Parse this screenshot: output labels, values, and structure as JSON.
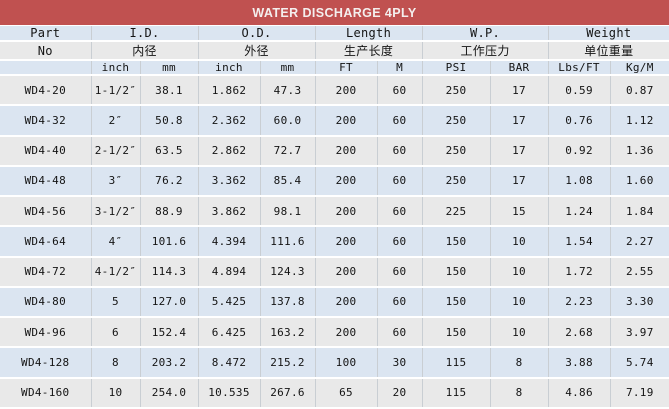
{
  "title": "WATER DISCHARGE 4PLY",
  "theme": {
    "header_bg": "#c05150",
    "title_text": "#f4efee",
    "row_blue": "#dbe5f1",
    "row_gray": "#e9e9e9",
    "cell_text": "#141414",
    "vertical_border": "#c9ced3",
    "horizontal_border": "#ffffff"
  },
  "header": {
    "groups": [
      {
        "top": "Part",
        "bottom": "No"
      },
      {
        "top": "I.D.",
        "bottom": "内径"
      },
      {
        "top": "O.D.",
        "bottom": "外径"
      },
      {
        "top": "Length",
        "bottom": "生产长度"
      },
      {
        "top": "W.P.",
        "bottom": "工作压力"
      },
      {
        "top": "Weight",
        "bottom": "单位重量"
      }
    ],
    "units": [
      "",
      "inch",
      "mm",
      "inch",
      "mm",
      "FT",
      "M",
      "PSI",
      "BAR",
      "Lbs/FT",
      "Kg/M"
    ]
  },
  "rows": [
    [
      "WD4-20",
      "1-1/2″",
      "38.1",
      "1.862",
      "47.3",
      "200",
      "60",
      "250",
      "17",
      "0.59",
      "0.87"
    ],
    [
      "WD4-32",
      "2″",
      "50.8",
      "2.362",
      "60.0",
      "200",
      "60",
      "250",
      "17",
      "0.76",
      "1.12"
    ],
    [
      "WD4-40",
      "2-1/2″",
      "63.5",
      "2.862",
      "72.7",
      "200",
      "60",
      "250",
      "17",
      "0.92",
      "1.36"
    ],
    [
      "WD4-48",
      "3″",
      "76.2",
      "3.362",
      "85.4",
      "200",
      "60",
      "250",
      "17",
      "1.08",
      "1.60"
    ],
    [
      "WD4-56",
      "3-1/2″",
      "88.9",
      "3.862",
      "98.1",
      "200",
      "60",
      "225",
      "15",
      "1.24",
      "1.84"
    ],
    [
      "WD4-64",
      "4″",
      "101.6",
      "4.394",
      "111.6",
      "200",
      "60",
      "150",
      "10",
      "1.54",
      "2.27"
    ],
    [
      "WD4-72",
      "4-1/2″",
      "114.3",
      "4.894",
      "124.3",
      "200",
      "60",
      "150",
      "10",
      "1.72",
      "2.55"
    ],
    [
      "WD4-80",
      "5",
      "127.0",
      "5.425",
      "137.8",
      "200",
      "60",
      "150",
      "10",
      "2.23",
      "3.30"
    ],
    [
      "WD4-96",
      "6",
      "152.4",
      "6.425",
      "163.2",
      "200",
      "60",
      "150",
      "10",
      "2.68",
      "3.97"
    ],
    [
      "WD4-128",
      "8",
      "203.2",
      "8.472",
      "215.2",
      "100",
      "30",
      "115",
      "8",
      "3.88",
      "5.74"
    ],
    [
      "WD4-160",
      "10",
      "254.0",
      "10.535",
      "267.6",
      "65",
      "20",
      "115",
      "8",
      "4.86",
      "7.19"
    ]
  ],
  "column_keys": [
    "part-no",
    "id-inch",
    "id-mm",
    "od-inch",
    "od-mm",
    "length-ft",
    "length-m",
    "wp-psi",
    "wp-bar",
    "weight-lbs-ft",
    "weight-kg-m"
  ]
}
